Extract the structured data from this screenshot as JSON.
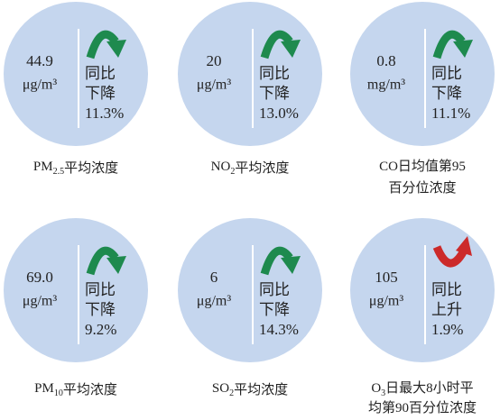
{
  "items": [
    {
      "value": "44.9",
      "unit": "μg/m³",
      "change": [
        "同比",
        "下降"
      ],
      "percent": "11.3%",
      "trend": "down",
      "label": [
        [
          {
            "text": "PM"
          },
          {
            "text": "2.5",
            "sub": true
          },
          {
            "text": "平均浓度"
          }
        ]
      ]
    },
    {
      "value": "20",
      "unit": "μg/m³",
      "change": [
        "同比",
        "下降"
      ],
      "percent": "13.0%",
      "trend": "down",
      "label": [
        [
          {
            "text": "NO"
          },
          {
            "text": "2",
            "sub": true
          },
          {
            "text": "平均浓度"
          }
        ]
      ]
    },
    {
      "value": "0.8",
      "unit": "mg/m³",
      "change": [
        "同比",
        "下降"
      ],
      "percent": "11.1%",
      "trend": "down",
      "label": [
        [
          {
            "text": "CO日均值第95"
          }
        ],
        [
          {
            "text": "百分位浓度"
          }
        ]
      ]
    },
    {
      "value": "69.0",
      "unit": "μg/m³",
      "change": [
        "同比",
        "下降"
      ],
      "percent": "9.2%",
      "trend": "down",
      "label": [
        [
          {
            "text": "PM"
          },
          {
            "text": "10",
            "sub": true
          },
          {
            "text": "平均浓度"
          }
        ]
      ]
    },
    {
      "value": "6",
      "unit": "μg/m³",
      "change": [
        "同比",
        "下降"
      ],
      "percent": "14.3%",
      "trend": "down",
      "label": [
        [
          {
            "text": "SO"
          },
          {
            "text": "2",
            "sub": true
          },
          {
            "text": "平均浓度"
          }
        ]
      ]
    },
    {
      "value": "105",
      "unit": "μg/m³",
      "change": [
        "同比",
        "上升"
      ],
      "percent": "1.9%",
      "trend": "up",
      "label": [
        [
          {
            "text": "O"
          },
          {
            "text": "3",
            "sub": true
          },
          {
            "text": "日最大8小时平"
          }
        ],
        [
          {
            "text": "均第90百分位浓度"
          }
        ]
      ]
    }
  ]
}
